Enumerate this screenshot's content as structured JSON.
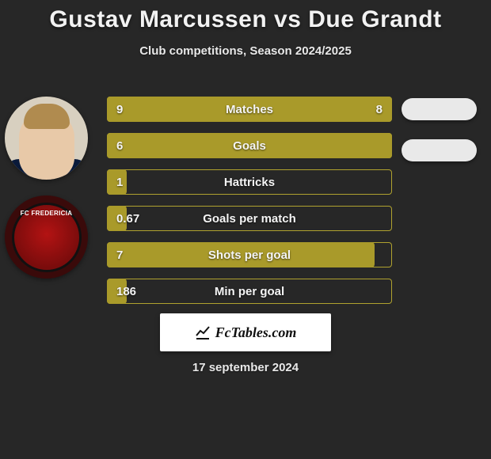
{
  "title": "Gustav Marcussen vs Due Grandt",
  "subtitle": "Club competitions, Season 2024/2025",
  "footer_brand": "FcTables.com",
  "footer_date": "17 september 2024",
  "colors": {
    "background": "#272727",
    "bar_fill": "#a99a2a",
    "bar_border": "#b0a22f",
    "text": "#f5f5f5",
    "badge_bg": "#ffffff",
    "badge_text": "#111111",
    "oval": "#e9e9e9"
  },
  "bars": [
    {
      "label": "Matches",
      "left": "9",
      "right": "8",
      "fill_pct": 100
    },
    {
      "label": "Goals",
      "left": "6",
      "right": "",
      "fill_pct": 100
    },
    {
      "label": "Hattricks",
      "left": "1",
      "right": "",
      "fill_pct": 7
    },
    {
      "label": "Goals per match",
      "left": "0.67",
      "right": "",
      "fill_pct": 7
    },
    {
      "label": "Shots per goal",
      "left": "7",
      "right": "",
      "fill_pct": 94
    },
    {
      "label": "Min per goal",
      "left": "186",
      "right": "",
      "fill_pct": 7
    }
  ],
  "club_badge_text": "FC FREDERICIA"
}
